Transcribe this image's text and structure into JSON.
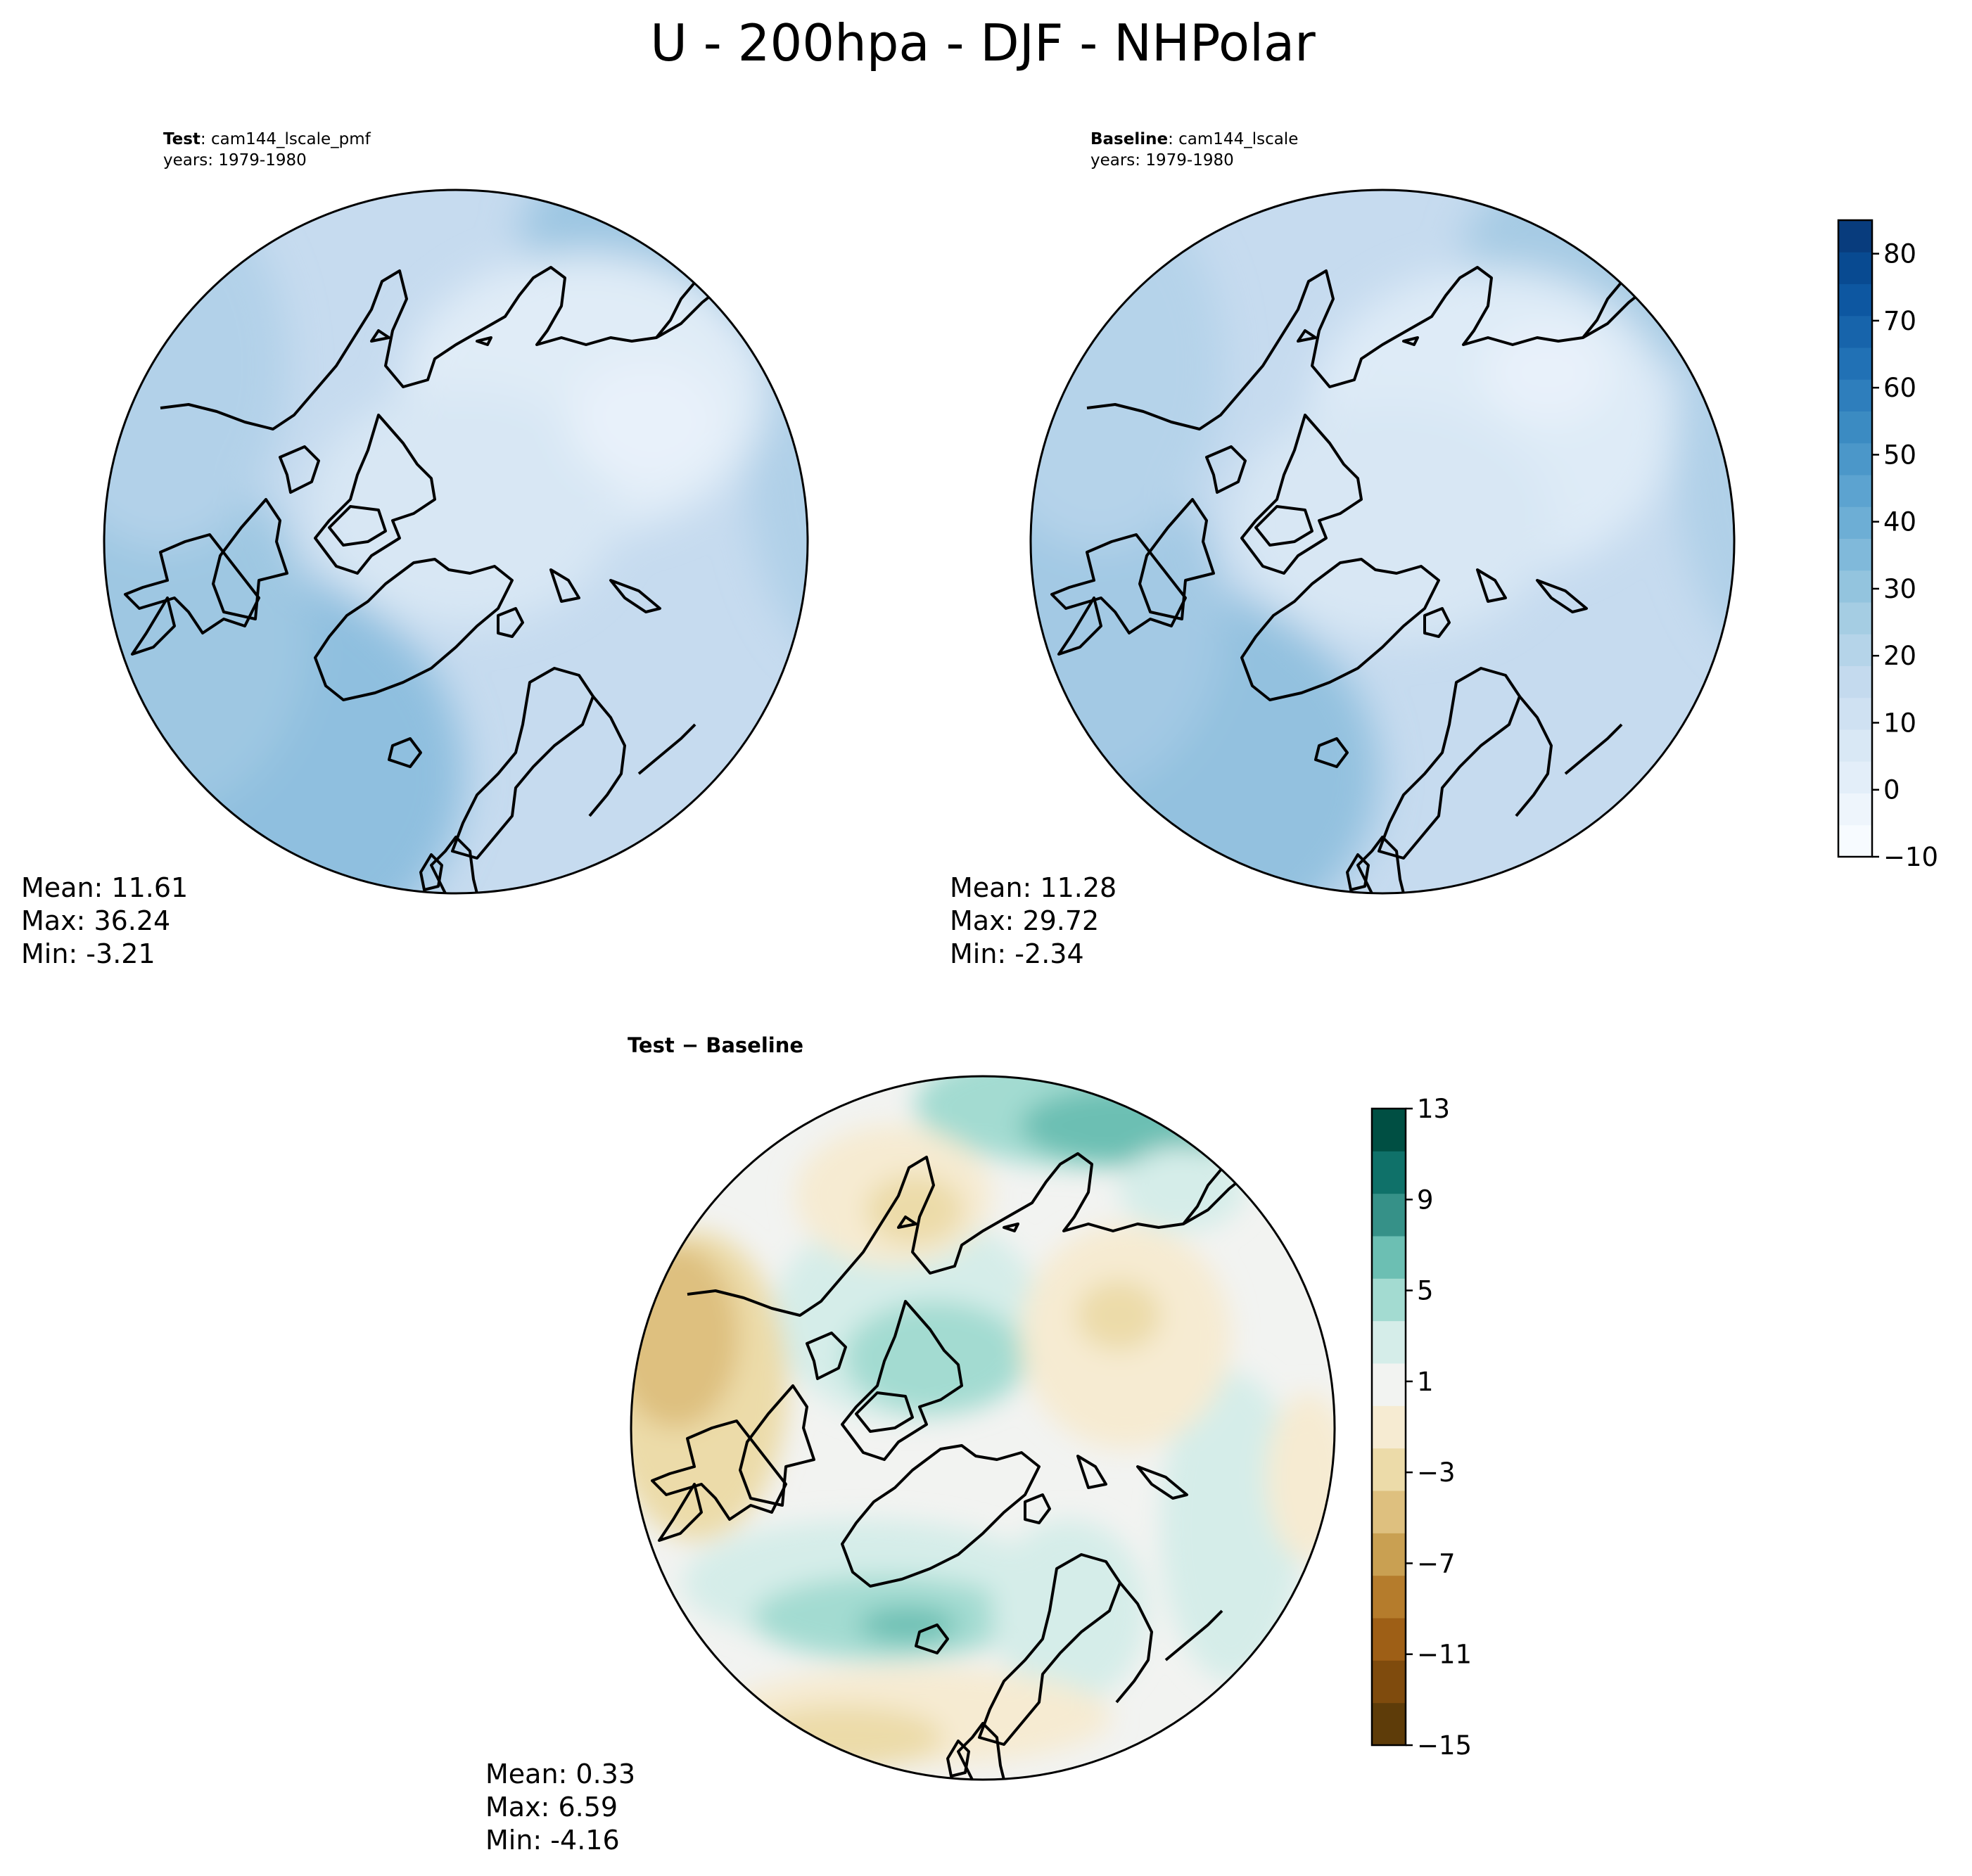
{
  "figure": {
    "title": "U - 200hpa - DJF - NHPolar"
  },
  "panels": {
    "test": {
      "label_bold": "Test",
      "label_rest": ": cam144_lscale_pmf",
      "years": "years: 1979-1980",
      "stats": {
        "mean": "Mean: 11.61",
        "max": "Max: 36.24",
        "min": "Min: -3.21"
      }
    },
    "baseline": {
      "label_bold": "Baseline",
      "label_rest": ": cam144_lscale",
      "years": "years: 1979-1980",
      "stats": {
        "mean": "Mean: 11.28",
        "max": "Max: 29.72",
        "min": "Min: -2.34"
      }
    },
    "diff": {
      "title": "Test − Baseline",
      "stats": {
        "mean": "Mean:  0.33",
        "max": "Max:  6.59",
        "min": "Min: -4.16"
      }
    }
  },
  "colorbars": {
    "main": {
      "range": [
        -10,
        85
      ],
      "ticks": [
        "−10",
        "0",
        "10",
        "20",
        "30",
        "40",
        "50",
        "60",
        "70",
        "80"
      ],
      "colors": [
        "#f7fbff",
        "#eef5fc",
        "#e3eef9",
        "#d9e8f5",
        "#cfe1f2",
        "#c4daee",
        "#b5d4e9",
        "#a5cde3",
        "#93c4de",
        "#80b9da",
        "#6daed5",
        "#5ca3d0",
        "#4b97c9",
        "#3b8bc2",
        "#2e7ebc",
        "#2171b5",
        "#1764ab",
        "#0d57a1",
        "#084a91",
        "#083c7d"
      ]
    },
    "diff": {
      "range": [
        -15,
        13
      ],
      "ticks": [
        "−15",
        "−11",
        "−7",
        "−3",
        "1",
        "5",
        "9",
        "13"
      ],
      "colors": [
        "#5e3c09",
        "#7f4b0d",
        "#9e5f16",
        "#b57c2c",
        "#c9a052",
        "#dec07f",
        "#ecdba9",
        "#f6ebd2",
        "#f2f3f1",
        "#d5ede9",
        "#a3dbd1",
        "#6cbfb3",
        "#369188",
        "#0f7169",
        "#004f43"
      ]
    }
  }
}
